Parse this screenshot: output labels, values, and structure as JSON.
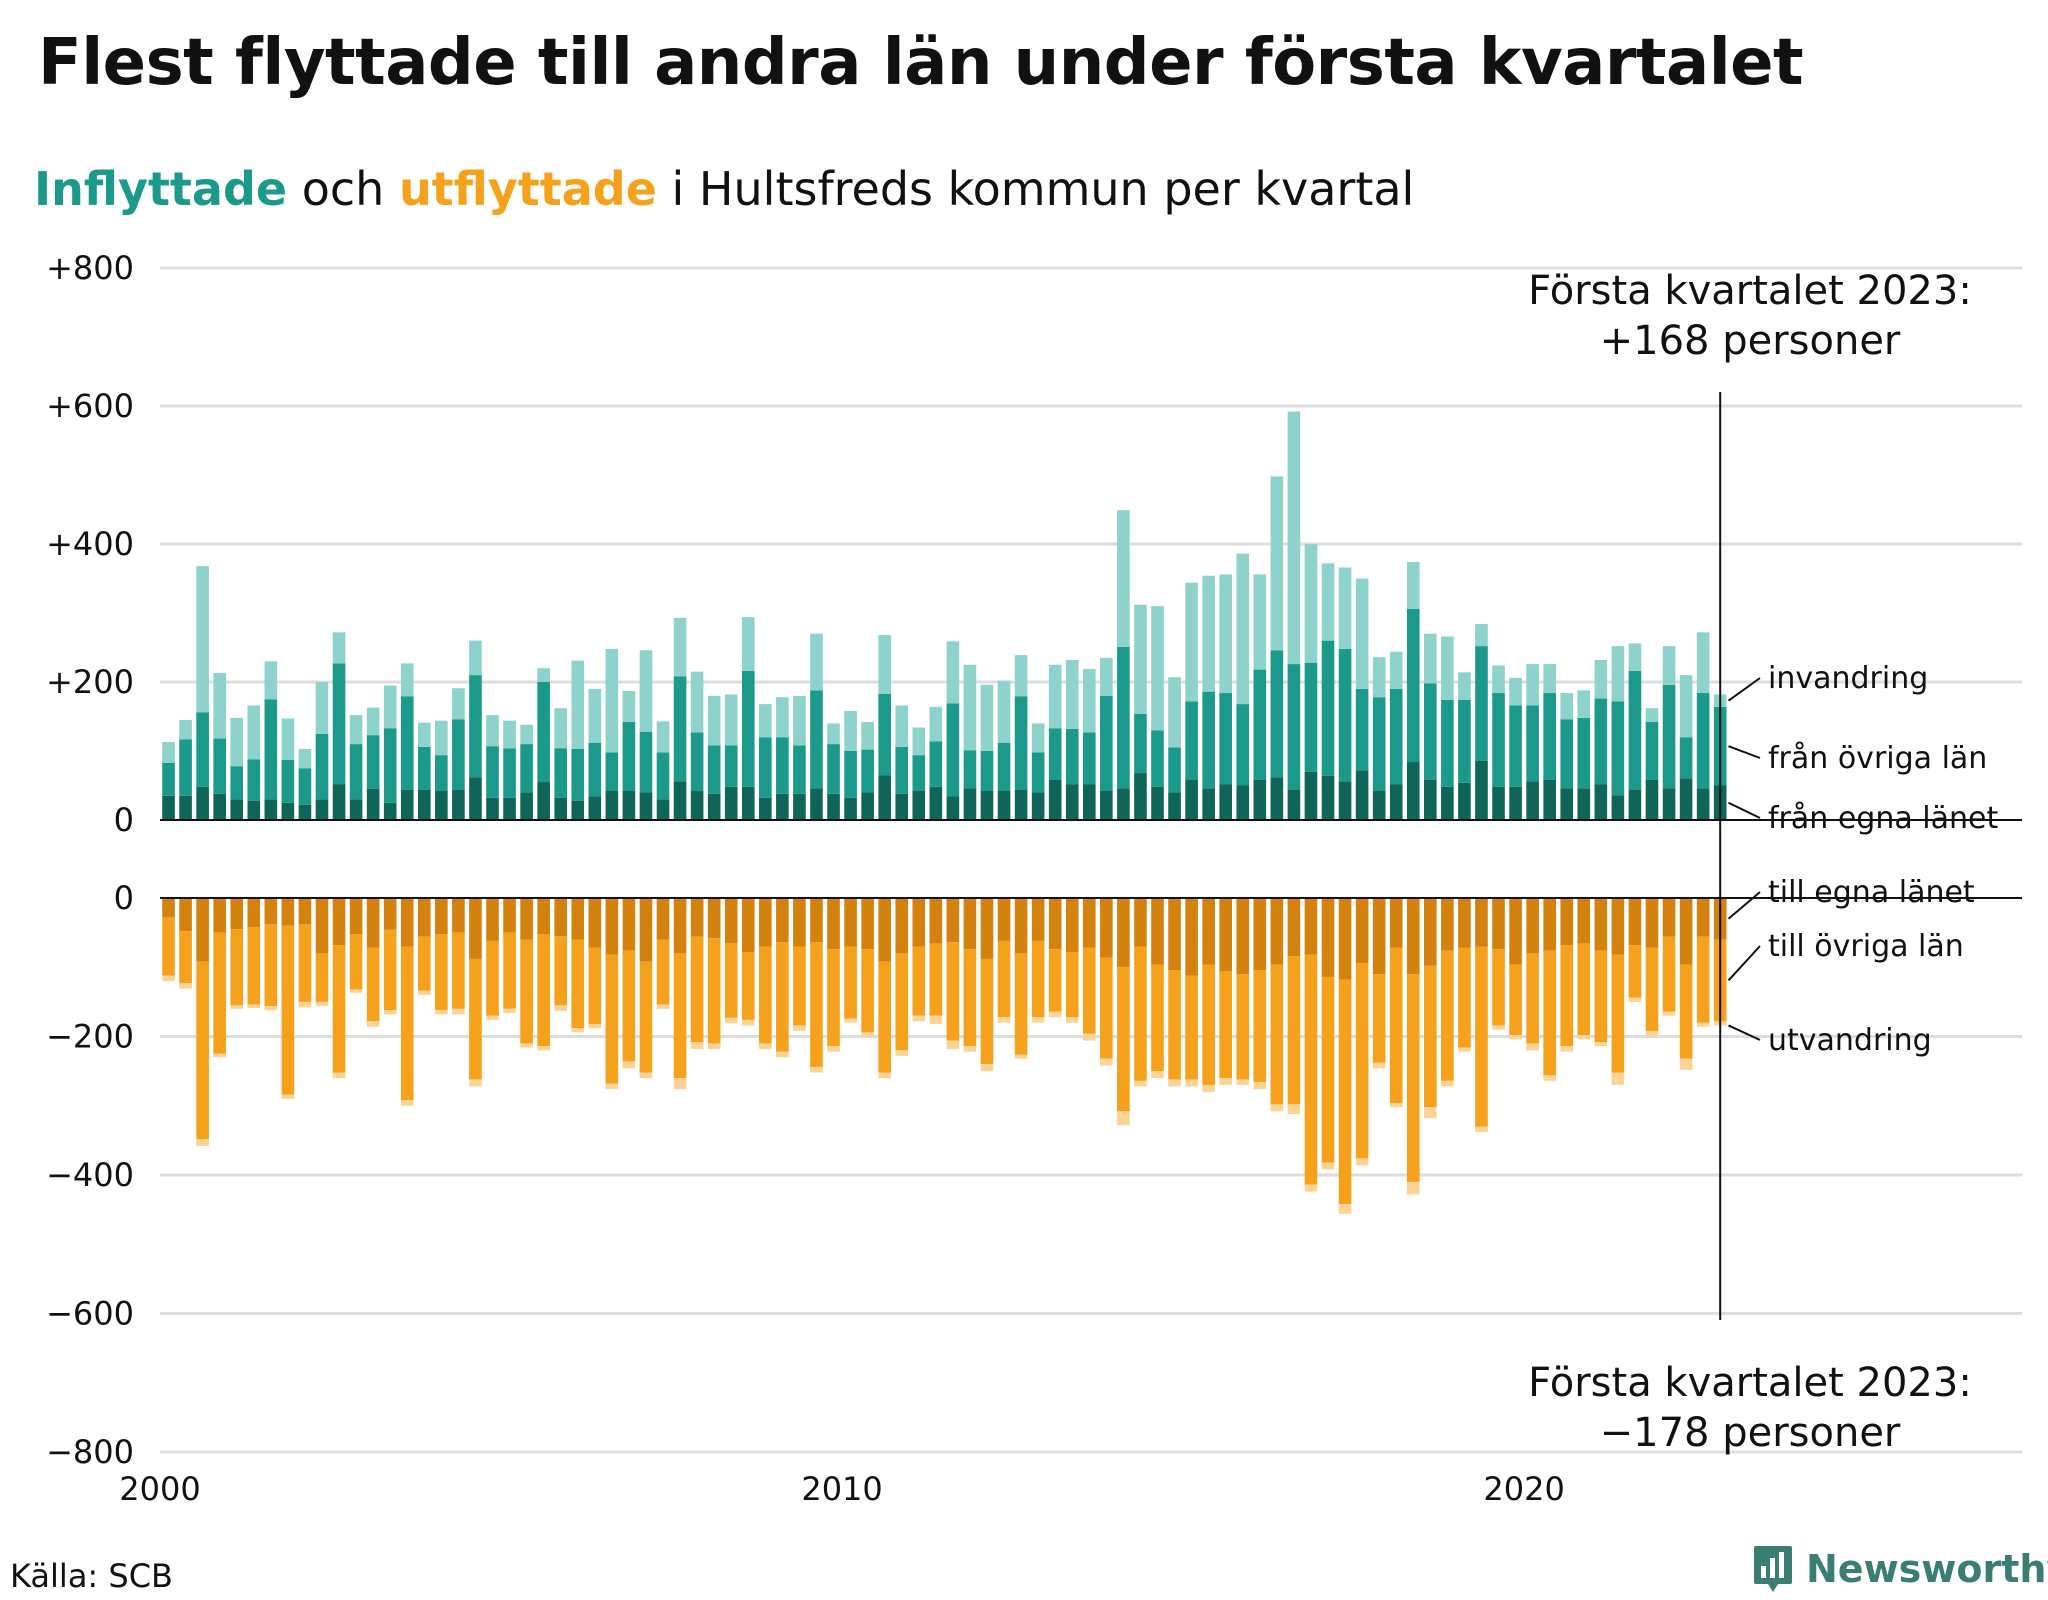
{
  "title": "Flest flyttade till andra län under första kvartalet",
  "subtitle": {
    "in_word": "Inflyttade",
    "middle": "och",
    "out_word": "utflyttade",
    "rest": "i Hultsfreds kommun per kvartal"
  },
  "colors": {
    "egna_in": "#0f6558",
    "ovriga_in": "#1b9a8b",
    "invandring": "#8ed3cb",
    "egna_out": "#d4820f",
    "ovriga_out": "#f5a11c",
    "utvandring": "#fbd394",
    "grid": "#dddddd"
  },
  "source": "Källa: SCB",
  "brand": {
    "name": "Newsworthy",
    "icon": "newsworthy-bar-chart-icon"
  },
  "chart_data": {
    "type": "bar",
    "stacked": true,
    "x_start": "2000 Q1",
    "x_label_years": [
      2000,
      2010,
      2020
    ],
    "xlim": [
      2000,
      2027.3
    ],
    "upper_ylim": [
      0,
      800
    ],
    "lower_ylim": [
      -800,
      0
    ],
    "upper_ticks": [
      "0",
      "+200",
      "+400",
      "+600",
      "+800"
    ],
    "lower_ticks": [
      "0",
      "−200",
      "−400",
      "−600",
      "−800"
    ],
    "grid": true,
    "inflows": [
      {
        "name": "från egna länet",
        "values": [
          35,
          35,
          48,
          38,
          30,
          28,
          30,
          25,
          22,
          30,
          52,
          30,
          45,
          25,
          44,
          44,
          42,
          44,
          62,
          32,
          32,
          40,
          55,
          32,
          28,
          34,
          42,
          42,
          40,
          30,
          56,
          42,
          38,
          48,
          48,
          32,
          38,
          38,
          46,
          38,
          32,
          40,
          65,
          38,
          42,
          48,
          34,
          46,
          42,
          42,
          44,
          40,
          58,
          52,
          52,
          42,
          46,
          68,
          48,
          40,
          58,
          46,
          52,
          50,
          58,
          62,
          44,
          70,
          64,
          56,
          72,
          42,
          52,
          84,
          58,
          48,
          54,
          86,
          48,
          48,
          56,
          58,
          46,
          46,
          52,
          36,
          44,
          58,
          46,
          60,
          46,
          50
        ]
      },
      {
        "name": "från övriga län",
        "values": [
          48,
          82,
          108,
          80,
          48,
          60,
          145,
          62,
          53,
          95,
          175,
          80,
          78,
          108,
          135,
          62,
          52,
          102,
          148,
          75,
          72,
          70,
          145,
          72,
          75,
          78,
          56,
          100,
          88,
          68,
          152,
          85,
          70,
          60,
          168,
          88,
          82,
          70,
          142,
          72,
          68,
          62,
          118,
          68,
          52,
          66,
          135,
          55,
          58,
          70,
          135,
          58,
          75,
          80,
          75,
          138,
          205,
          86,
          82,
          65,
          114,
          140,
          132,
          118,
          160,
          184,
          182,
          158,
          196,
          192,
          118,
          136,
          138,
          222,
          140,
          126,
          120,
          166,
          136,
          118,
          110,
          126,
          100,
          102,
          124,
          136,
          172,
          84,
          150,
          60,
          138,
          114
        ]
      },
      {
        "name": "invandring",
        "values": [
          30,
          28,
          212,
          95,
          70,
          78,
          55,
          60,
          28,
          75,
          45,
          42,
          40,
          62,
          48,
          35,
          50,
          45,
          50,
          45,
          40,
          28,
          20,
          58,
          128,
          78,
          150,
          45,
          118,
          45,
          85,
          88,
          72,
          74,
          78,
          48,
          58,
          72,
          82,
          30,
          58,
          40,
          85,
          60,
          40,
          50,
          90,
          124,
          96,
          90,
          60,
          42,
          92,
          100,
          92,
          55,
          198,
          158,
          180,
          102,
          172,
          168,
          172,
          218,
          138,
          252,
          366,
          172,
          112,
          118,
          160,
          58,
          54,
          68,
          72,
          92,
          40,
          32,
          40,
          40,
          60,
          42,
          38,
          40,
          56,
          80,
          40,
          20,
          56,
          90,
          88,
          18
        ]
      }
    ],
    "outflows": [
      {
        "name": "till egna länet",
        "values": [
          -28,
          -48,
          -92,
          -50,
          -45,
          -42,
          -38,
          -40,
          -38,
          -80,
          -68,
          -52,
          -72,
          -46,
          -70,
          -56,
          -52,
          -50,
          -88,
          -62,
          -50,
          -60,
          -52,
          -55,
          -60,
          -72,
          -82,
          -76,
          -92,
          -60,
          -80,
          -56,
          -58,
          -65,
          -78,
          -70,
          -64,
          -70,
          -64,
          -74,
          -70,
          -74,
          -92,
          -80,
          -70,
          -66,
          -64,
          -74,
          -88,
          -62,
          -80,
          -62,
          -74,
          -78,
          -72,
          -86,
          -100,
          -70,
          -96,
          -104,
          -112,
          -96,
          -106,
          -110,
          -104,
          -96,
          -84,
          -82,
          -114,
          -118,
          -94,
          -110,
          -72,
          -110,
          -98,
          -76,
          -72,
          -70,
          -74,
          -96,
          -80,
          -76,
          -68,
          -66,
          -76,
          -82,
          -68,
          -72,
          -56,
          -96,
          -56,
          -60
        ]
      },
      {
        "name": "till övriga län",
        "values": [
          -84,
          -75,
          -256,
          -175,
          -110,
          -112,
          -118,
          -244,
          -112,
          -70,
          -184,
          -80,
          -106,
          -116,
          -222,
          -78,
          -110,
          -110,
          -174,
          -108,
          -110,
          -150,
          -162,
          -100,
          -128,
          -110,
          -186,
          -160,
          -160,
          -94,
          -180,
          -152,
          -152,
          -108,
          -98,
          -140,
          -158,
          -114,
          -180,
          -140,
          -104,
          -120,
          -160,
          -140,
          -100,
          -104,
          -142,
          -140,
          -152,
          -110,
          -146,
          -110,
          -90,
          -94,
          -124,
          -146,
          -208,
          -194,
          -154,
          -158,
          -150,
          -174,
          -154,
          -152,
          -162,
          -202,
          -214,
          -332,
          -268,
          -324,
          -282,
          -128,
          -224,
          -300,
          -204,
          -188,
          -144,
          -260,
          -110,
          -102,
          -130,
          -180,
          -146,
          -132,
          -132,
          -170,
          -76,
          -120,
          -108,
          -136,
          -124,
          -118
        ]
      },
      {
        "name": "utvandring",
        "values": [
          -8,
          -8,
          -10,
          -5,
          -5,
          -5,
          -6,
          -6,
          -8,
          -6,
          -8,
          -5,
          -8,
          -6,
          -8,
          -6,
          -6,
          -8,
          -10,
          -6,
          -6,
          -6,
          -6,
          -8,
          -6,
          -6,
          -8,
          -10,
          -8,
          -6,
          -16,
          -10,
          -8,
          -8,
          -8,
          -8,
          -8,
          -8,
          -8,
          -8,
          -6,
          -6,
          -8,
          -8,
          -8,
          -12,
          -12,
          -8,
          -10,
          -8,
          -6,
          -8,
          -8,
          -8,
          -10,
          -10,
          -20,
          -8,
          -10,
          -10,
          -10,
          -10,
          -10,
          -8,
          -10,
          -10,
          -14,
          -10,
          -10,
          -14,
          -10,
          -8,
          -6,
          -18,
          -16,
          -8,
          -6,
          -8,
          -6,
          -6,
          -10,
          -8,
          -8,
          -6,
          -6,
          -18,
          -6,
          -8,
          -6,
          -16,
          -6,
          -6
        ]
      }
    ],
    "segment_labels_in": [
      "invandring",
      "från övriga län",
      "från egna länet"
    ],
    "segment_labels_out": [
      "till egna länet",
      "till övriga län",
      "utvandring"
    ],
    "annotation_top": {
      "line1": "Första kvartalet 2023:",
      "line2": "+168 personer"
    },
    "annotation_bottom": {
      "line1": "Första kvartalet 2023:",
      "line2": "−178 personer"
    },
    "highlight_quarter": "2023 Q1"
  }
}
